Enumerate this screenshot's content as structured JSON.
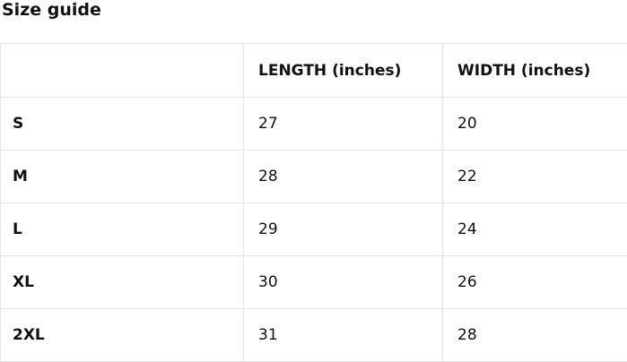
{
  "page": {
    "title": "Size guide"
  },
  "table": {
    "headers": [
      "",
      "LENGTH (inches)",
      "WIDTH (inches)"
    ],
    "rows": [
      {
        "size": "S",
        "length": "27",
        "width": "20"
      },
      {
        "size": "M",
        "length": "28",
        "width": "22"
      },
      {
        "size": "L",
        "length": "29",
        "width": "24"
      },
      {
        "size": "XL",
        "length": "30",
        "width": "26"
      },
      {
        "size": "2XL",
        "length": "31",
        "width": "28"
      }
    ]
  },
  "colors": {
    "border": "#e5e5e5",
    "text": "#111111",
    "background": "#ffffff"
  }
}
